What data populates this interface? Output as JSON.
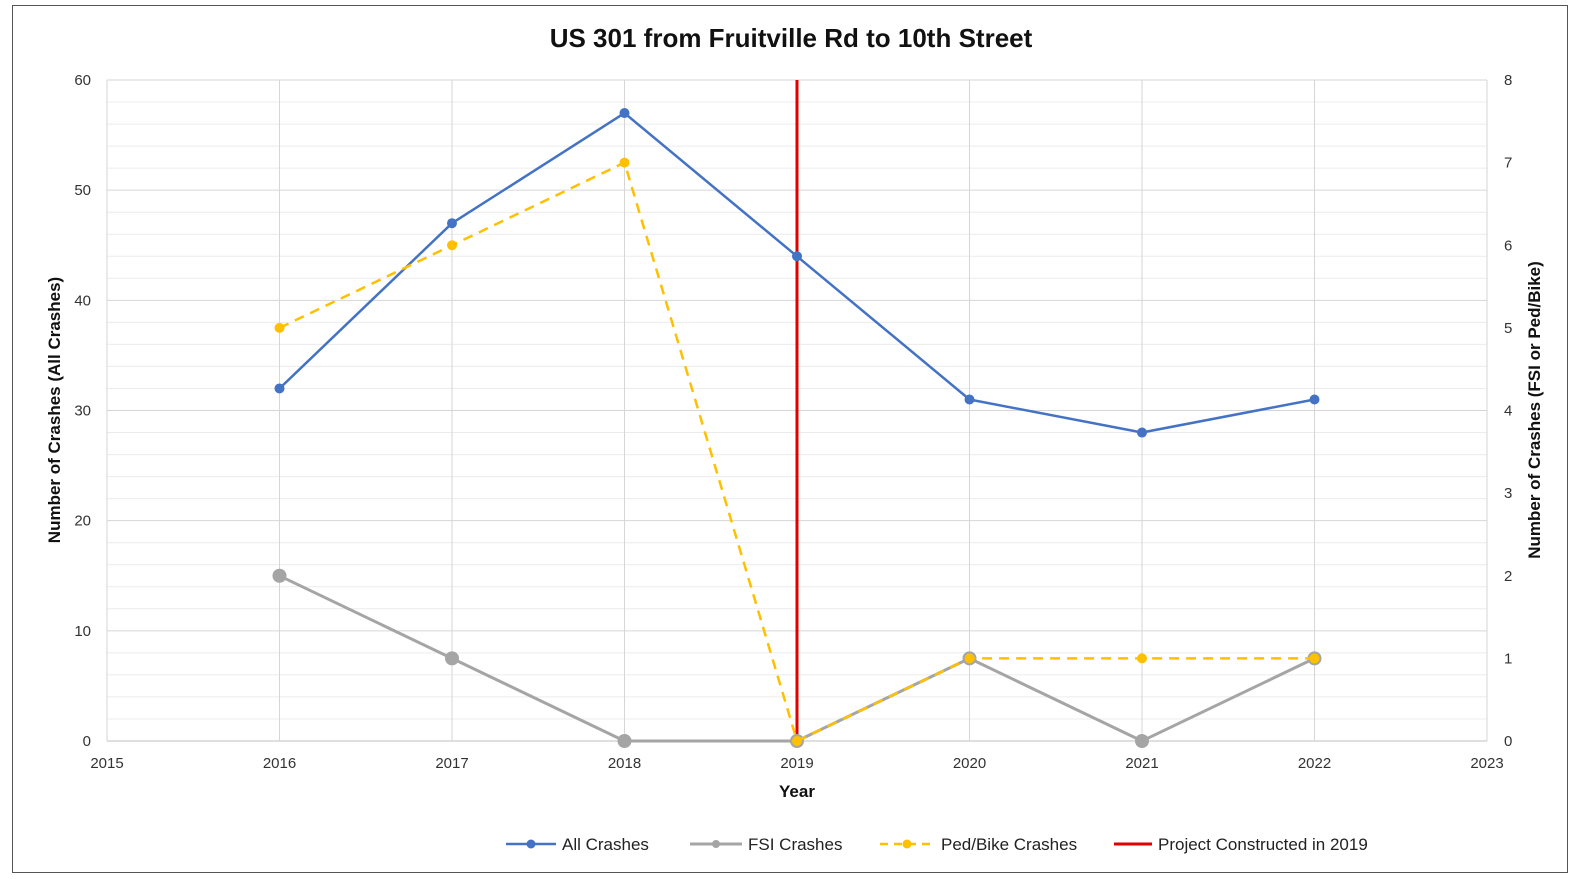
{
  "chart_data": {
    "type": "line",
    "title": "US 301 from Fruitville Rd to 10th Street",
    "xlabel": "Year",
    "ylabel": "Number of Crashes (All Crashes)",
    "y2label": "Number of Crashes (FSI or Ped/Bike)",
    "xlim": [
      2015,
      2023
    ],
    "ylim": [
      0,
      60
    ],
    "y2lim": [
      0,
      8
    ],
    "x_ticks": [
      "2015",
      "2016",
      "2017",
      "2018",
      "2019",
      "2020",
      "2021",
      "2022",
      "2023"
    ],
    "y_ticks": [
      "0",
      "10",
      "20",
      "30",
      "40",
      "50",
      "60"
    ],
    "y2_ticks": [
      "0",
      "1",
      "2",
      "3",
      "4",
      "5",
      "6",
      "7",
      "8"
    ],
    "grid": true,
    "legend_position": "bottom",
    "series": [
      {
        "name": "All Crashes",
        "axis": "left",
        "color": "#4472C4",
        "style": "solid",
        "x": [
          2016,
          2017,
          2018,
          2019,
          2020,
          2021,
          2022
        ],
        "values": [
          32,
          47,
          57,
          44,
          31,
          28,
          31
        ]
      },
      {
        "name": "FSI Crashes",
        "axis": "right",
        "color": "#A5A5A5",
        "style": "solid",
        "x": [
          2016,
          2017,
          2018,
          2019,
          2020,
          2021,
          2022
        ],
        "values": [
          2,
          1,
          0,
          0,
          1,
          0,
          1
        ]
      },
      {
        "name": "Ped/Bike Crashes",
        "axis": "right",
        "color": "#FFC000",
        "style": "dashed",
        "x": [
          2016,
          2017,
          2018,
          2019,
          2020,
          2021,
          2022
        ],
        "values": [
          5,
          6,
          7,
          0,
          1,
          1,
          1
        ]
      }
    ],
    "reference_line": {
      "name": "Project Constructed in 2019",
      "x": 2019,
      "color": "#E00000"
    }
  }
}
